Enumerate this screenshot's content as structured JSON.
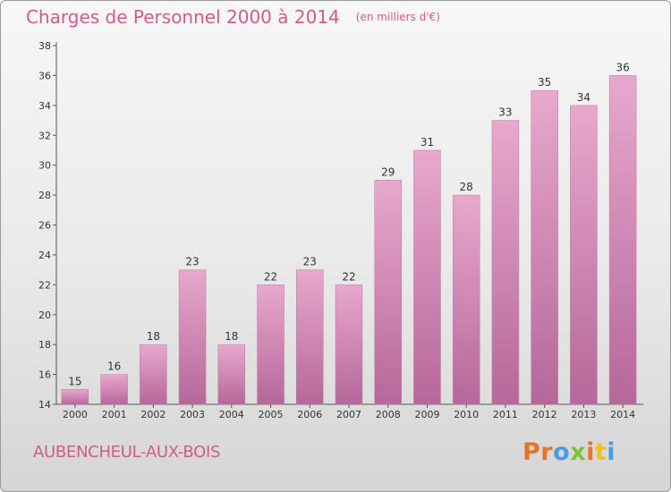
{
  "title": "Charges de Personnel 2000 à 2014",
  "title_unit": "(en milliers d'€)",
  "commune": "AUBENCHEUL-AUX-BOIS",
  "logo": {
    "text": "Proxiti",
    "letter_colors": [
      "#e8732a",
      "#e8732a",
      "#4a9be0",
      "#7cc43a",
      "#e8732a",
      "#f0c020",
      "#4a9be0"
    ]
  },
  "colors": {
    "title": "#d25a8c",
    "bar_top": "#e8a8cc",
    "bar_bottom": "#b5689a"
  },
  "chart_data": {
    "type": "bar",
    "categories": [
      "2000",
      "2001",
      "2002",
      "2003",
      "2004",
      "2005",
      "2006",
      "2007",
      "2008",
      "2009",
      "2010",
      "2011",
      "2012",
      "2013",
      "2014"
    ],
    "values": [
      15,
      16,
      18,
      23,
      18,
      22,
      23,
      22,
      29,
      31,
      28,
      33,
      35,
      34,
      36
    ],
    "ylim": [
      14,
      38
    ],
    "yticks": [
      14,
      16,
      18,
      20,
      22,
      24,
      26,
      28,
      30,
      32,
      34,
      36,
      38
    ],
    "grid": false,
    "legend": "none"
  }
}
